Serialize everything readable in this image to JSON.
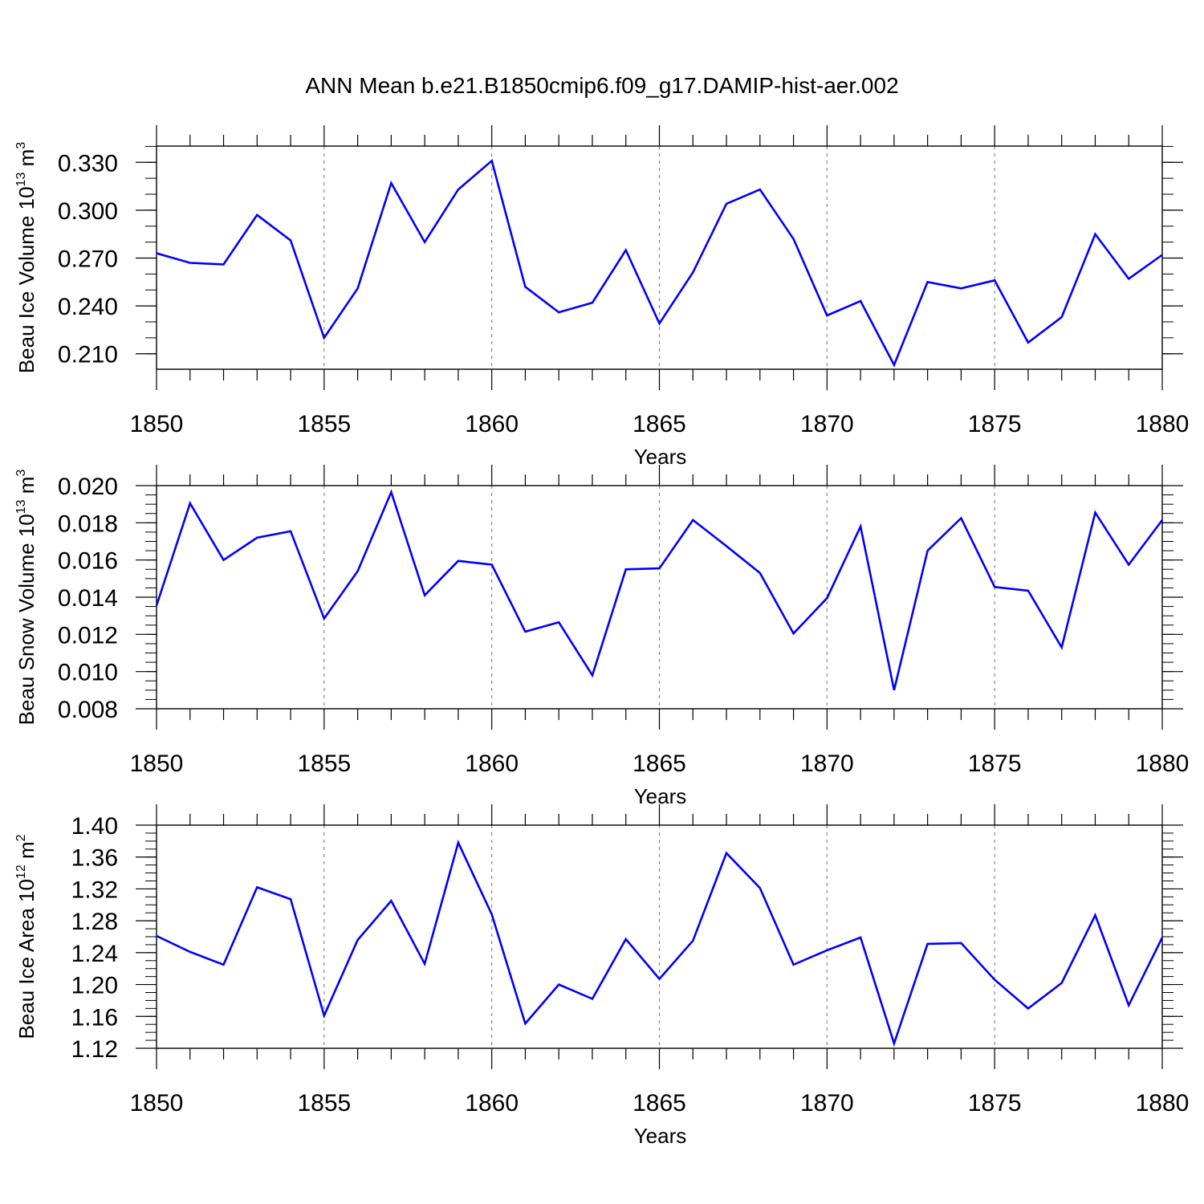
{
  "title": "ANN Mean b.e21.B1850cmip6.f09_g17.DAMIP-hist-aer.002",
  "chart_data": [
    {
      "type": "line",
      "title": "ANN Mean b.e21.B1850cmip6.f09_g17.DAMIP-hist-aer.002",
      "ylabel": "Beau Ice Volume 10",
      "ylabel_exp": "13",
      "ylabel_unit": "m",
      "ylabel_unit_exp": "3",
      "xlabel": "Years",
      "xlim": [
        1850,
        1880
      ],
      "ylim": [
        0.2003,
        0.3402
      ],
      "yticks": [
        0.21,
        0.24,
        0.27,
        0.3,
        0.33
      ],
      "ytick_labels": [
        "0.210",
        "0.240",
        "0.270",
        "0.300",
        "0.330"
      ],
      "yminor_step": 0.01,
      "x": [
        1850,
        1851,
        1852,
        1853,
        1854,
        1855,
        1856,
        1857,
        1858,
        1859,
        1860,
        1861,
        1862,
        1863,
        1864,
        1865,
        1866,
        1867,
        1868,
        1869,
        1870,
        1871,
        1872,
        1873,
        1874,
        1875,
        1876,
        1877,
        1878,
        1879,
        1880
      ],
      "series": [
        {
          "name": "Beau Ice Volume",
          "color": "#0000ff",
          "values": [
            0.273,
            0.267,
            0.266,
            0.297,
            0.281,
            0.22,
            0.251,
            0.317,
            0.28,
            0.313,
            0.331,
            0.252,
            0.236,
            0.242,
            0.275,
            0.229,
            0.261,
            0.304,
            0.313,
            0.282,
            0.234,
            0.243,
            0.203,
            0.255,
            0.251,
            0.256,
            0.217,
            0.233,
            0.285,
            0.257,
            0.272
          ]
        }
      ]
    },
    {
      "type": "line",
      "ylabel": "Beau Snow Volume 10",
      "ylabel_exp": "13",
      "ylabel_unit": "m",
      "ylabel_unit_exp": "3",
      "xlabel": "Years",
      "xlim": [
        1850,
        1880
      ],
      "ylim": [
        0.008,
        0.02
      ],
      "yticks": [
        0.008,
        0.01,
        0.012,
        0.014,
        0.016,
        0.018,
        0.02
      ],
      "ytick_labels": [
        "0.008",
        "0.010",
        "0.012",
        "0.014",
        "0.016",
        "0.018",
        "0.020"
      ],
      "yminor_step": 0.0005,
      "x": [
        1850,
        1851,
        1852,
        1853,
        1854,
        1855,
        1856,
        1857,
        1858,
        1859,
        1860,
        1861,
        1862,
        1863,
        1864,
        1865,
        1866,
        1867,
        1868,
        1869,
        1870,
        1871,
        1872,
        1873,
        1874,
        1875,
        1876,
        1877,
        1878,
        1879,
        1880
      ],
      "series": [
        {
          "name": "Beau Snow Volume",
          "color": "#0000ff",
          "values": [
            0.01355,
            0.01905,
            0.016,
            0.0172,
            0.01755,
            0.01285,
            0.0154,
            0.01965,
            0.0141,
            0.01595,
            0.01575,
            0.01215,
            0.01265,
            0.0098,
            0.0155,
            0.01555,
            0.01815,
            0.01675,
            0.0153,
            0.01205,
            0.01395,
            0.0178,
            0.009,
            0.0165,
            0.01825,
            0.01455,
            0.01435,
            0.0113,
            0.01855,
            0.01575,
            0.01815
          ]
        }
      ]
    },
    {
      "type": "line",
      "ylabel": "Beau Ice Area 10",
      "ylabel_exp": "12",
      "ylabel_unit": "m",
      "ylabel_unit_exp": "2",
      "xlabel": "Years",
      "xlim": [
        1850,
        1880
      ],
      "ylim": [
        1.12,
        1.4
      ],
      "yticks": [
        1.12,
        1.16,
        1.2,
        1.24,
        1.28,
        1.32,
        1.36,
        1.4
      ],
      "ytick_labels": [
        "1.12",
        "1.16",
        "1.20",
        "1.24",
        "1.28",
        "1.32",
        "1.36",
        "1.40"
      ],
      "yminor_step": 0.01,
      "x": [
        1850,
        1851,
        1852,
        1853,
        1854,
        1855,
        1856,
        1857,
        1858,
        1859,
        1860,
        1861,
        1862,
        1863,
        1864,
        1865,
        1866,
        1867,
        1868,
        1869,
        1870,
        1871,
        1872,
        1873,
        1874,
        1875,
        1876,
        1877,
        1878,
        1879,
        1880
      ],
      "series": [
        {
          "name": "Beau Ice Area",
          "color": "#0000ff",
          "values": [
            1.261,
            1.241,
            1.225,
            1.322,
            1.307,
            1.161,
            1.256,
            1.305,
            1.226,
            1.378,
            1.288,
            1.151,
            1.2,
            1.182,
            1.257,
            1.207,
            1.255,
            1.365,
            1.321,
            1.225,
            1.243,
            1.259,
            1.126,
            1.251,
            1.252,
            1.206,
            1.17,
            1.202,
            1.287,
            1.174,
            1.259
          ]
        }
      ]
    }
  ],
  "xticks": [
    1850,
    1855,
    1860,
    1865,
    1870,
    1875,
    1880
  ],
  "xtick_labels": [
    "1850",
    "1855",
    "1860",
    "1865",
    "1870",
    "1875",
    "1880"
  ]
}
